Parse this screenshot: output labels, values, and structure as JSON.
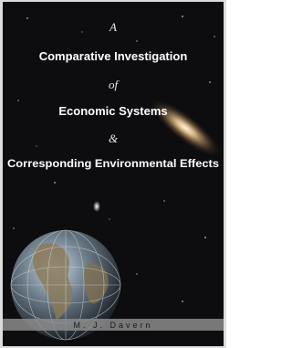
{
  "cover": {
    "title_lines": [
      "A",
      "Comparative Investigation",
      "of",
      "Economic Systems",
      "&",
      "Corresponding Environmental Effects"
    ],
    "author": "M. J. Davern"
  }
}
